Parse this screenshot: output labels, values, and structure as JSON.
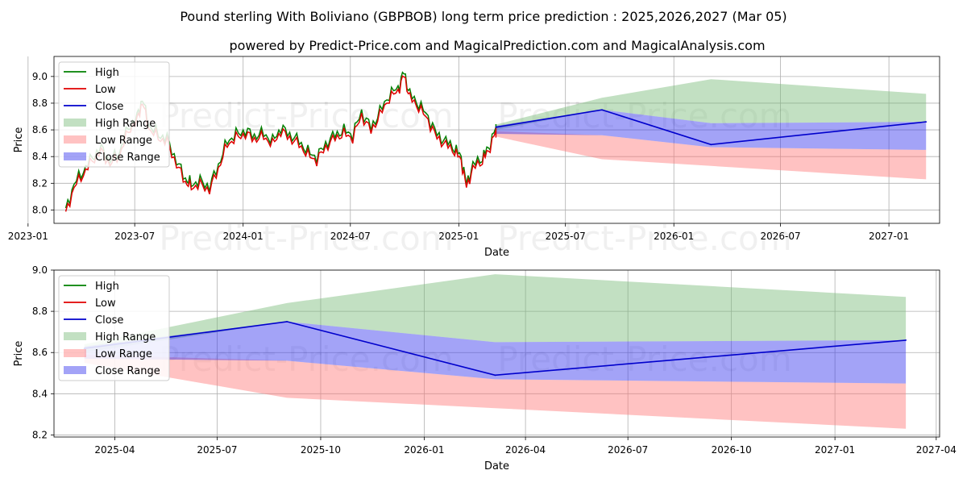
{
  "title": "Pound sterling With Boliviano (GBPBOB) long term price prediction : 2025,2026,2027 (Mar 05)",
  "subtitle": "powered by Predict-Price.com and MagicalPrediction.com and MagicalAnalysis.com",
  "watermark": "Predict-Price.com",
  "colors": {
    "high": "#008000",
    "low": "#e00000",
    "close": "#0000cc",
    "high_range": "#77bb77",
    "low_range": "#ff7777",
    "close_range": "#3333ee",
    "grid": "#b0b0b0"
  },
  "legend": [
    "High",
    "Low",
    "Close",
    "High Range",
    "Low Range",
    "Close Range"
  ],
  "chart_data": [
    {
      "type": "line",
      "name": "long-term",
      "xlabel": "Date",
      "ylabel": "Price",
      "x_ticks": [
        "2023-01",
        "2023-07",
        "2024-01",
        "2024-07",
        "2025-01",
        "2025-07",
        "2026-01",
        "2026-07",
        "2027-01"
      ],
      "y_ticks": [
        "8.0",
        "8.2",
        "8.4",
        "8.6",
        "8.8",
        "9.0"
      ],
      "xlim": [
        "2023-02-14",
        "2027-03-28"
      ],
      "ylim": [
        7.9,
        9.15
      ],
      "history_close": [
        [
          "2023-03-06",
          7.98
        ],
        [
          "2023-03-20",
          8.18
        ],
        [
          "2023-04-05",
          8.28
        ],
        [
          "2023-04-20",
          8.38
        ],
        [
          "2023-05-05",
          8.45
        ],
        [
          "2023-05-20",
          8.35
        ],
        [
          "2023-06-05",
          8.42
        ],
        [
          "2023-06-20",
          8.6
        ],
        [
          "2023-07-05",
          8.68
        ],
        [
          "2023-07-14",
          8.82
        ],
        [
          "2023-07-25",
          8.62
        ],
        [
          "2023-08-10",
          8.55
        ],
        [
          "2023-08-25",
          8.52
        ],
        [
          "2023-09-10",
          8.35
        ],
        [
          "2023-09-25",
          8.22
        ],
        [
          "2023-10-05",
          8.18
        ],
        [
          "2023-10-20",
          8.2
        ],
        [
          "2023-11-05",
          8.16
        ],
        [
          "2023-11-20",
          8.32
        ],
        [
          "2023-12-05",
          8.5
        ],
        [
          "2023-12-20",
          8.55
        ],
        [
          "2024-01-05",
          8.58
        ],
        [
          "2024-01-20",
          8.54
        ],
        [
          "2024-02-05",
          8.56
        ],
        [
          "2024-02-20",
          8.5
        ],
        [
          "2024-03-05",
          8.6
        ],
        [
          "2024-03-20",
          8.55
        ],
        [
          "2024-04-05",
          8.5
        ],
        [
          "2024-04-20",
          8.42
        ],
        [
          "2024-05-05",
          8.38
        ],
        [
          "2024-05-20",
          8.48
        ],
        [
          "2024-06-05",
          8.55
        ],
        [
          "2024-06-20",
          8.58
        ],
        [
          "2024-07-05",
          8.55
        ],
        [
          "2024-07-20",
          8.72
        ],
        [
          "2024-08-05",
          8.6
        ],
        [
          "2024-08-20",
          8.72
        ],
        [
          "2024-09-05",
          8.85
        ],
        [
          "2024-09-20",
          8.9
        ],
        [
          "2024-09-30",
          9.02
        ],
        [
          "2024-10-10",
          8.85
        ],
        [
          "2024-10-25",
          8.78
        ],
        [
          "2024-11-10",
          8.68
        ],
        [
          "2024-11-25",
          8.55
        ],
        [
          "2024-12-10",
          8.5
        ],
        [
          "2024-12-25",
          8.45
        ],
        [
          "2025-01-05",
          8.38
        ],
        [
          "2025-01-14",
          8.18
        ],
        [
          "2025-01-25",
          8.32
        ],
        [
          "2025-02-10",
          8.38
        ],
        [
          "2025-02-20",
          8.45
        ],
        [
          "2025-03-05",
          8.6
        ]
      ],
      "forecast": {
        "dates": [
          "2025-03-05",
          "2025-09-01",
          "2026-03-05",
          "2027-03-05"
        ],
        "close": [
          8.62,
          8.75,
          8.49,
          8.66
        ],
        "high_range_top": [
          8.64,
          8.84,
          8.98,
          8.87
        ],
        "high_range_bottom": [
          8.6,
          8.75,
          8.65,
          8.66
        ],
        "close_range_top": [
          8.63,
          8.75,
          8.65,
          8.66
        ],
        "close_range_bottom": [
          8.57,
          8.56,
          8.47,
          8.45
        ],
        "low_range_top": [
          8.59,
          8.56,
          8.47,
          8.45
        ],
        "low_range_bottom": [
          8.55,
          8.38,
          8.33,
          8.23
        ]
      }
    },
    {
      "type": "area",
      "name": "forecast-zoom",
      "xlabel": "Date",
      "ylabel": "Price",
      "x_ticks": [
        "2025-04",
        "2025-07",
        "2025-10",
        "2026-01",
        "2026-04",
        "2026-07",
        "2026-10",
        "2027-01",
        "2027-04"
      ],
      "y_ticks": [
        "8.2",
        "8.4",
        "8.6",
        "8.8",
        "9.0"
      ],
      "xlim": [
        "2025-02-06",
        "2027-04-04"
      ],
      "ylim": [
        8.19,
        9.0
      ],
      "forecast": {
        "dates": [
          "2025-03-05",
          "2025-09-01",
          "2026-03-05",
          "2027-03-05"
        ],
        "close": [
          8.62,
          8.75,
          8.49,
          8.66
        ],
        "high_range_top": [
          8.64,
          8.84,
          8.98,
          8.87
        ],
        "high_range_bottom": [
          8.6,
          8.75,
          8.65,
          8.66
        ],
        "close_range_top": [
          8.63,
          8.75,
          8.65,
          8.66
        ],
        "close_range_bottom": [
          8.57,
          8.56,
          8.47,
          8.45
        ],
        "low_range_top": [
          8.59,
          8.56,
          8.47,
          8.45
        ],
        "low_range_bottom": [
          8.55,
          8.38,
          8.33,
          8.23
        ]
      }
    }
  ]
}
